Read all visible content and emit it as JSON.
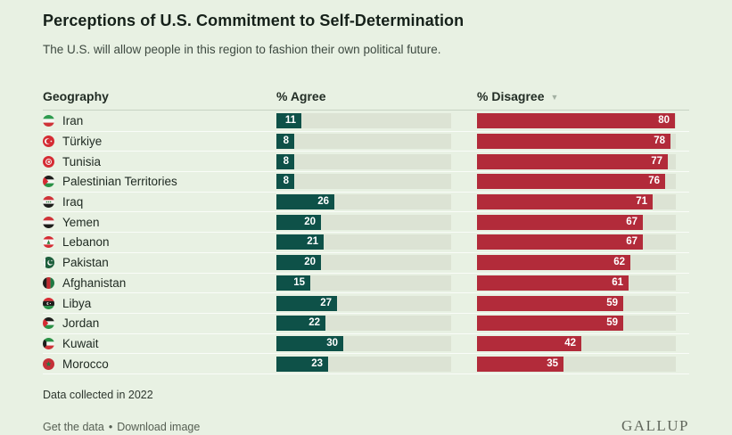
{
  "title": "Perceptions of U.S. Commitment to Self-Determination",
  "subtitle": "The U.S. will allow people in this region to fashion their own political future.",
  "columns": {
    "geography": "Geography",
    "agree": "% Agree",
    "disagree": "% Disagree"
  },
  "sort": {
    "column": "% Disagree",
    "direction": "descending",
    "glyph": "▼"
  },
  "chart_data": {
    "type": "bar",
    "orientation": "horizontal",
    "title": "Perceptions of U.S. Commitment to Self-Determination",
    "subtitle": "The U.S. will allow people in this region to fashion their own political future.",
    "categories": [
      "Iran",
      "Türkiye",
      "Tunisia",
      "Palestinian Territories",
      "Iraq",
      "Yemen",
      "Lebanon",
      "Pakistan",
      "Afghanistan",
      "Libya",
      "Jordan",
      "Kuwait",
      "Morocco"
    ],
    "series": [
      {
        "name": "% Agree",
        "color": "#0e5148",
        "values": [
          11,
          8,
          8,
          8,
          26,
          20,
          21,
          20,
          15,
          27,
          22,
          30,
          23
        ]
      },
      {
        "name": "% Disagree",
        "color": "#b22b3a",
        "values": [
          80,
          78,
          77,
          76,
          71,
          67,
          67,
          62,
          61,
          59,
          59,
          42,
          35
        ]
      }
    ],
    "xlim": [
      0,
      100
    ],
    "value_labels": "inside-end",
    "grid": false,
    "legend_position": "column-headers",
    "sorted_by": "% Disagree descending"
  },
  "flag_icons": [
    "iran-flag-icon",
    "turkiye-flag-icon",
    "tunisia-flag-icon",
    "palestinian-territories-flag-icon",
    "iraq-flag-icon",
    "yemen-flag-icon",
    "lebanon-flag-icon",
    "pakistan-flag-icon",
    "afghanistan-flag-icon",
    "libya-flag-icon",
    "jordan-flag-icon",
    "kuwait-flag-icon",
    "morocco-flag-icon"
  ],
  "footer": {
    "note": "Data collected in 2022",
    "links": [
      "Get the data",
      "Download image"
    ],
    "separator": "•",
    "brand": "GALLUP"
  },
  "colors": {
    "background": "#e8f1e3",
    "bar_track": "#dce3d4",
    "agree_bar": "#0e5148",
    "disagree_bar": "#b22b3a",
    "value_label": "#ffffff"
  }
}
